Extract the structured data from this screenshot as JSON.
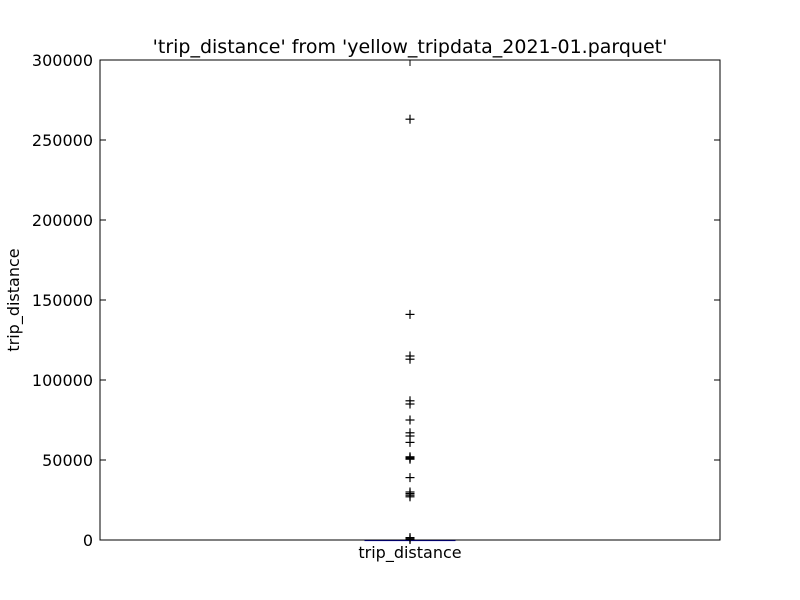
{
  "chart_data": {
    "type": "scatter",
    "title": "'trip_distance' from 'yellow_tripdata_2021-01.parquet'",
    "xlabel": "",
    "ylabel": "trip_distance",
    "categories": [
      "trip_distance"
    ],
    "ylim": [
      0,
      300000
    ],
    "yticks": [
      0,
      50000,
      100000,
      150000,
      200000,
      250000,
      300000
    ],
    "ytick_labels": [
      "0",
      "50000",
      "100000",
      "150000",
      "200000",
      "250000",
      "300000"
    ],
    "grid": false,
    "box": {
      "q1": 1.0,
      "median": 1.8,
      "q3": 3.3,
      "whisker_low": 0,
      "whisker_high": 7
    },
    "outliers": [
      263000,
      141000,
      115000,
      113000,
      87000,
      85000,
      75000,
      67000,
      65000,
      61000,
      52000,
      51500,
      51000,
      50500,
      39000,
      30000,
      29000,
      28000,
      27000,
      1500,
      800,
      300
    ],
    "colors": {
      "marker": "#000000",
      "median": "#cc0000",
      "box": "#0000cc"
    }
  }
}
